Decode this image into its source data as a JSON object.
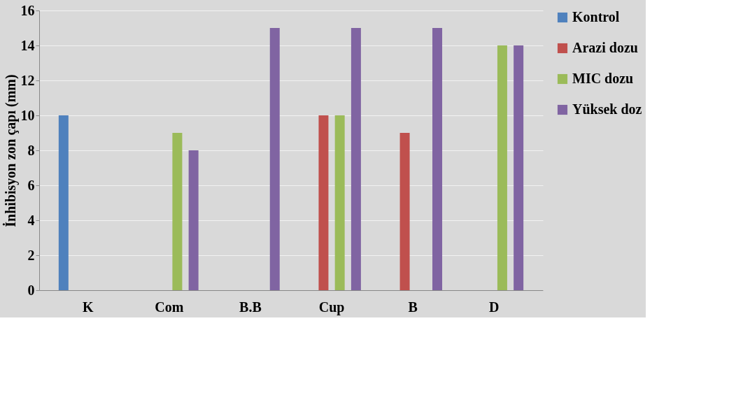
{
  "chart_data": {
    "type": "bar",
    "ylabel": "İnhibisyon zon çapı (mm)",
    "categories": [
      "K",
      "Com",
      "B.B",
      "Cup",
      "B",
      "D"
    ],
    "series": [
      {
        "name": "Kontrol",
        "color": "#4f81bd",
        "values": [
          10,
          null,
          null,
          null,
          null,
          null
        ]
      },
      {
        "name": "Arazi dozu",
        "color": "#c0504d",
        "values": [
          null,
          0,
          0,
          10,
          9,
          0
        ]
      },
      {
        "name": "MIC dozu",
        "color": "#9bbb59",
        "values": [
          null,
          9,
          0,
          10,
          0,
          14
        ]
      },
      {
        "name": "Yüksek doz",
        "color": "#8064a2",
        "values": [
          null,
          8,
          15,
          15,
          15,
          14
        ]
      }
    ],
    "ylim": [
      0,
      16
    ],
    "yticks": [
      0,
      2,
      4,
      6,
      8,
      10,
      12,
      14,
      16
    ],
    "grid": "y",
    "legend": "right"
  }
}
